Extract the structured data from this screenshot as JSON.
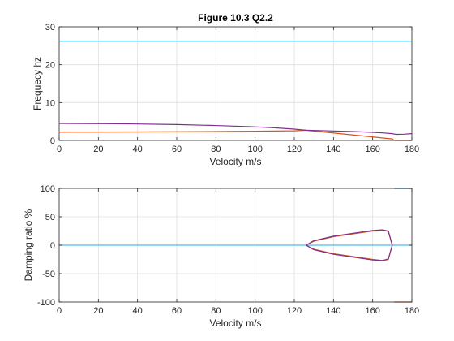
{
  "chart_data": [
    {
      "type": "line",
      "title": "Figure 10.3 Q2.2",
      "xlabel": "Velocity m/s",
      "ylabel": "Frequecy hz",
      "xlim": [
        0,
        180
      ],
      "ylim": [
        0,
        30
      ],
      "xticks": [
        "0",
        "20",
        "40",
        "60",
        "80",
        "100",
        "120",
        "140",
        "160",
        "180"
      ],
      "yticks": [
        "0",
        "10",
        "20",
        "30"
      ],
      "grid": true,
      "series": [
        {
          "color": "#4DBEEE",
          "x": [
            0,
            180
          ],
          "y": [
            26.2,
            26.2
          ]
        },
        {
          "color": "#D95319",
          "x": [
            0,
            40,
            80,
            100,
            120,
            126,
            170,
            171,
            180
          ],
          "y": [
            2.2,
            2.25,
            2.35,
            2.45,
            2.55,
            2.7,
            0.4,
            0.0,
            0.0
          ]
        },
        {
          "color": "#7E2F8E",
          "x": [
            0,
            20,
            40,
            60,
            80,
            100,
            110,
            120,
            126,
            140,
            150,
            160,
            165,
            170,
            172,
            176,
            180
          ],
          "y": [
            4.5,
            4.45,
            4.35,
            4.2,
            3.95,
            3.6,
            3.35,
            3.0,
            2.7,
            2.5,
            2.35,
            2.15,
            2.0,
            1.8,
            1.6,
            1.65,
            1.8
          ]
        }
      ]
    },
    {
      "type": "line",
      "title": "",
      "xlabel": "Velocity m/s",
      "ylabel": "Damping ratio %",
      "xlim": [
        0,
        180
      ],
      "ylim": [
        -100,
        100
      ],
      "xticks": [
        "0",
        "20",
        "40",
        "60",
        "80",
        "100",
        "120",
        "140",
        "160",
        "180"
      ],
      "yticks": [
        "-100",
        "-50",
        "0",
        "50",
        "100"
      ],
      "grid": true,
      "series": [
        {
          "color": "#4DBEEE",
          "x": [
            0,
            180
          ],
          "y": [
            0,
            0
          ]
        },
        {
          "color": "#D95319",
          "x": [
            126,
            130,
            140,
            150,
            160,
            165,
            168,
            170
          ],
          "y": [
            0,
            7,
            15,
            20,
            25,
            27,
            25,
            0
          ]
        },
        {
          "color": "#7E2F8E",
          "x": [
            126,
            130,
            140,
            150,
            160,
            165,
            168,
            170
          ],
          "y": [
            0,
            8,
            16,
            21,
            26,
            27,
            24,
            0
          ]
        },
        {
          "color": "#D95319",
          "x": [
            126,
            130,
            140,
            150,
            160,
            165,
            168,
            170
          ],
          "y": [
            0,
            -7,
            -15,
            -20,
            -25,
            -27,
            -25,
            0
          ]
        },
        {
          "color": "#7E2F8E",
          "x": [
            126,
            130,
            140,
            150,
            160,
            165,
            168,
            170
          ],
          "y": [
            0,
            -8,
            -16,
            -21,
            -26,
            -27,
            -24,
            0
          ]
        },
        {
          "color": "#D95319",
          "x": [
            171,
            180
          ],
          "y": [
            -100,
            -100
          ]
        },
        {
          "color": "#0072BD",
          "x": [
            171,
            180
          ],
          "y": [
            100,
            100
          ]
        }
      ]
    }
  ]
}
